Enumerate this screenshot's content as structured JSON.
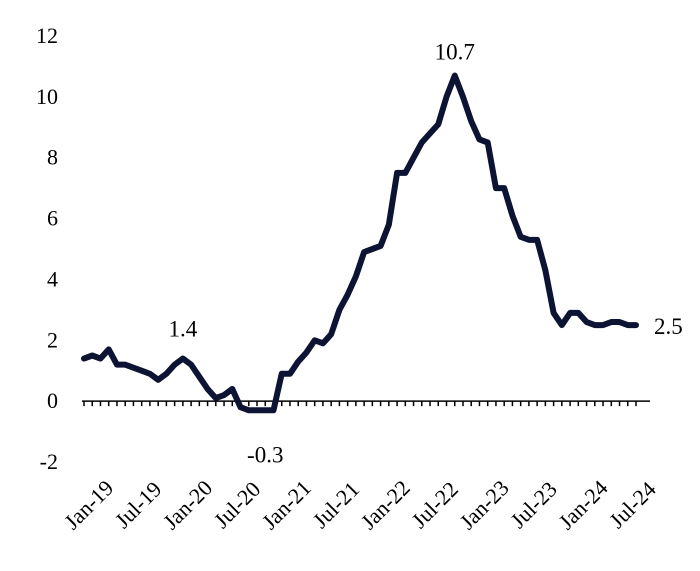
{
  "chart_data": {
    "type": "line",
    "title": "",
    "xlabel": "",
    "ylabel": "",
    "ylim": [
      -2,
      12
    ],
    "yticks": [
      -2,
      0,
      2,
      4,
      6,
      8,
      10,
      12
    ],
    "grid": false,
    "legend": "none",
    "x_tick_labels": [
      "Jan-19",
      "Jul-19",
      "Jan-20",
      "Jul-20",
      "Jan-21",
      "Jul-21",
      "Jan-22",
      "Jul-22",
      "Jan-23",
      "Jul-23",
      "Jan-24",
      "Jul-24"
    ],
    "x": [
      "Jan-19",
      "Feb-19",
      "Mar-19",
      "Apr-19",
      "May-19",
      "Jun-19",
      "Jul-19",
      "Aug-19",
      "Sep-19",
      "Oct-19",
      "Nov-19",
      "Dec-19",
      "Jan-20",
      "Feb-20",
      "Mar-20",
      "Apr-20",
      "May-20",
      "Jun-20",
      "Jul-20",
      "Aug-20",
      "Sep-20",
      "Oct-20",
      "Nov-20",
      "Dec-20",
      "Jan-21",
      "Feb-21",
      "Mar-21",
      "Apr-21",
      "May-21",
      "Jun-21",
      "Jul-21",
      "Aug-21",
      "Sep-21",
      "Oct-21",
      "Nov-21",
      "Dec-21",
      "Jan-22",
      "Feb-22",
      "Mar-22",
      "Apr-22",
      "May-22",
      "Jun-22",
      "Jul-22",
      "Aug-22",
      "Sep-22",
      "Oct-22",
      "Nov-22",
      "Dec-22",
      "Jan-23",
      "Feb-23",
      "Mar-23",
      "Apr-23",
      "May-23",
      "Jun-23",
      "Jul-23",
      "Aug-23",
      "Sep-23",
      "Oct-23",
      "Nov-23",
      "Dec-23",
      "Jan-24",
      "Feb-24",
      "Mar-24",
      "Apr-24",
      "May-24",
      "Jun-24",
      "Jul-24",
      "Aug-24"
    ],
    "series": [
      {
        "color": "#0d1333",
        "values": [
          1.4,
          1.5,
          1.4,
          1.7,
          1.2,
          1.2,
          1.1,
          1.0,
          0.9,
          0.7,
          0.9,
          1.2,
          1.4,
          1.2,
          0.8,
          0.4,
          0.1,
          0.2,
          0.4,
          -0.2,
          -0.3,
          -0.3,
          -0.3,
          -0.3,
          0.9,
          0.9,
          1.3,
          1.6,
          2.0,
          1.9,
          2.2,
          3.0,
          3.5,
          4.1,
          4.9,
          5.0,
          5.1,
          5.8,
          7.5,
          7.5,
          8.0,
          8.5,
          8.8,
          9.1,
          10.0,
          10.7,
          10.0,
          9.2,
          8.6,
          8.5,
          7.0,
          7.0,
          6.1,
          5.4,
          5.3,
          5.3,
          4.3,
          2.9,
          2.5,
          2.9,
          2.9,
          2.6,
          2.5,
          2.5,
          2.6,
          2.6,
          2.5,
          2.5
        ]
      }
    ],
    "annotations": [
      {
        "text": "1.4",
        "index": 12
      },
      {
        "text": "-0.3",
        "index": 22
      },
      {
        "text": "10.7",
        "index": 45
      },
      {
        "text": "2.5",
        "index": 67
      }
    ]
  }
}
